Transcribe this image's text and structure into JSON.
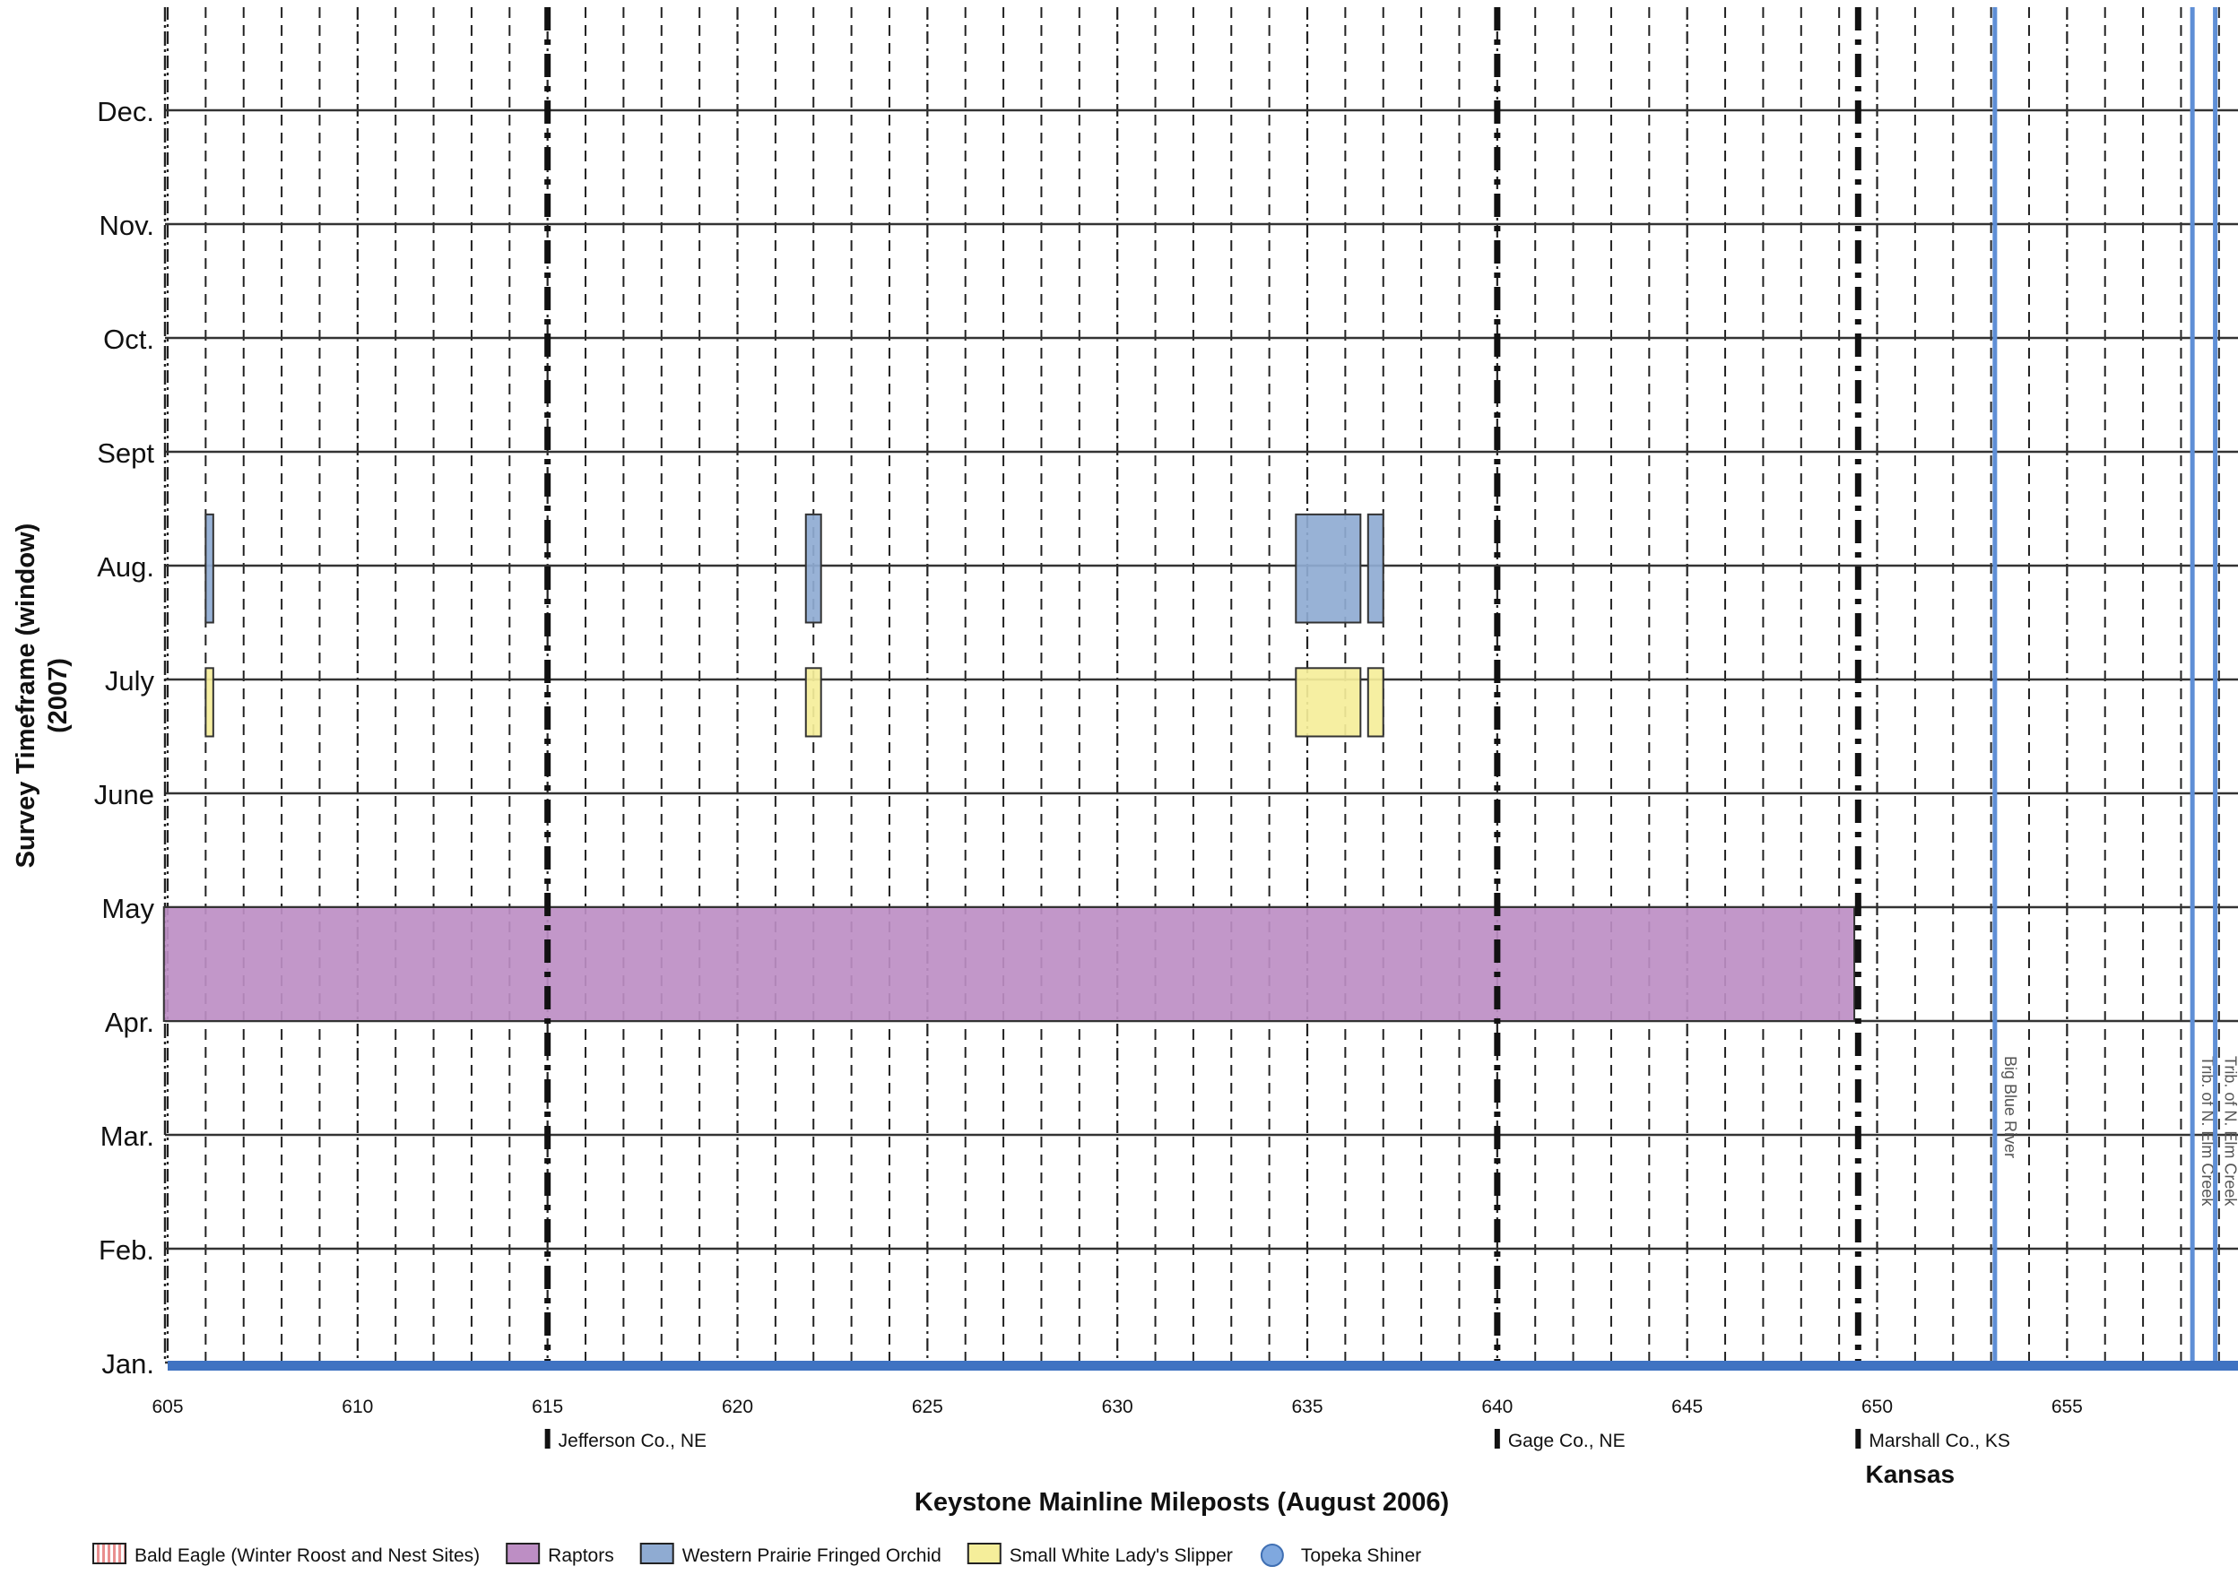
{
  "chart_data": {
    "type": "bar",
    "title": "",
    "xlabel": "Keystone Mainline Mileposts (August 2006)",
    "ylabel": "Survey Timeframe (window)",
    "ylabel_sub": "(2007)",
    "x_range": [
      605,
      659.5
    ],
    "x_ticks": [
      605,
      610,
      615,
      620,
      625,
      630,
      635,
      640,
      645,
      650,
      655
    ],
    "x_tick_labels": [
      "605",
      "610",
      "615",
      "620",
      "625",
      "630",
      "635",
      "640",
      "645",
      "650",
      "655"
    ],
    "y_categories": [
      "Jan.",
      "Feb.",
      "Mar.",
      "Apr.",
      "May",
      "June",
      "July",
      "Aug.",
      "Sept",
      "Oct.",
      "Nov.",
      "Dec."
    ],
    "grid": true,
    "legend_position": "bottom",
    "series": [
      {
        "name": "Bald Eagle (Winter Roost and Nest Sites)",
        "color": "#e98f8f",
        "pattern": "vertical-stripes",
        "bars": []
      },
      {
        "name": "Raptors",
        "color": "#bd8ec4",
        "bars": [
          {
            "x0": 604.9,
            "x1": 649.4,
            "y0": 3.0,
            "y1": 4.0
          }
        ]
      },
      {
        "name": "Western Prairie Fringed Orchid",
        "color": "#8fabd2",
        "bars": [
          {
            "x0": 606.0,
            "x1": 606.2,
            "y0": 6.5,
            "y1": 7.45
          },
          {
            "x0": 621.8,
            "x1": 622.2,
            "y0": 6.5,
            "y1": 7.45
          },
          {
            "x0": 634.7,
            "x1": 636.4,
            "y0": 6.5,
            "y1": 7.45
          },
          {
            "x0": 636.6,
            "x1": 637.0,
            "y0": 6.5,
            "y1": 7.45
          }
        ]
      },
      {
        "name": "Small White Lady's Slipper",
        "color": "#f5ee9a",
        "bars": [
          {
            "x0": 606.0,
            "x1": 606.2,
            "y0": 5.5,
            "y1": 6.1
          },
          {
            "x0": 621.8,
            "x1": 622.2,
            "y0": 5.5,
            "y1": 6.1
          },
          {
            "x0": 634.7,
            "x1": 636.4,
            "y0": 5.5,
            "y1": 6.1
          },
          {
            "x0": 636.6,
            "x1": 637.0,
            "y0": 5.5,
            "y1": 6.1
          }
        ]
      },
      {
        "name": "Topeka Shiner",
        "color": "#7fa8df",
        "bars": []
      }
    ],
    "boundaries": [
      {
        "milepost": 615,
        "label": "Jefferson Co., NE"
      },
      {
        "milepost": 640,
        "label": "Gage Co., NE"
      },
      {
        "milepost": 649.5,
        "label": "Marshall Co., KS"
      }
    ],
    "state_label": {
      "milepost": 649.5,
      "text": "Kansas"
    },
    "streams": [
      {
        "milepost": 653.1,
        "label": "Big Blue River"
      },
      {
        "milepost": 658.3,
        "label": "Trib. of N. Elm Creek"
      },
      {
        "milepost": 658.9,
        "label": "Trib. of N. Elm Creek"
      }
    ],
    "colors": {
      "stream_line": "#5f8fd6",
      "axis_bar": "#3f73c2",
      "grid": "#222222",
      "boundary": "#111111"
    }
  }
}
